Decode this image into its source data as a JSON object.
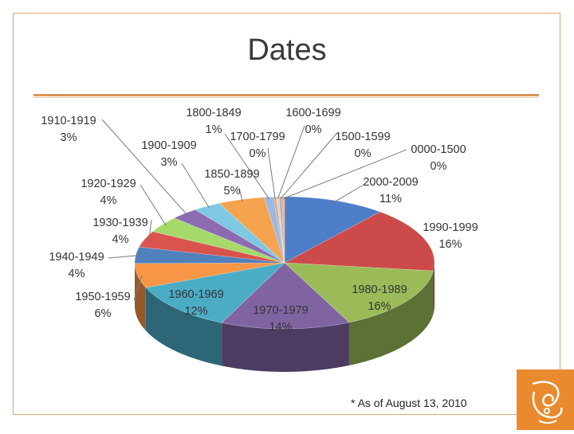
{
  "slide": {
    "title": "Dates",
    "footnote": "* As of August 13, 2010"
  },
  "colors": {
    "frame": "#d9a77a",
    "rule": "#d9955a",
    "logo": "#e88a2d"
  },
  "chart_data": {
    "type": "pie",
    "title": "Dates",
    "categories": [
      "2000-2009",
      "1990-1999",
      "1980-1989",
      "1970-1979",
      "1960-1969",
      "1950-1959",
      "1940-1949",
      "1930-1939",
      "1920-1929",
      "1910-1919",
      "1900-1909",
      "1850-1899",
      "1800-1849",
      "1700-1799",
      "1600-1699",
      "1500-1599",
      "0000-1500"
    ],
    "values": [
      11,
      16,
      16,
      14,
      12,
      6,
      4,
      4,
      4,
      3,
      3,
      5,
      1,
      0,
      0,
      0,
      0
    ],
    "labels": [
      "11%",
      "16%",
      "16%",
      "14%",
      "12%",
      "6%",
      "4%",
      "4%",
      "4%",
      "3%",
      "3%",
      "5%",
      "1%",
      "0%",
      "0%",
      "0%",
      "0%"
    ],
    "colors": [
      "#4f7ec8",
      "#cc4b4a",
      "#9bbb59",
      "#8064a2",
      "#4bacc6",
      "#f79646",
      "#4f81bd",
      "#d9534f",
      "#a6d96a",
      "#8c6bb1",
      "#7ec8e3",
      "#f5a34f",
      "#9cb9e0",
      "#e8a3a3",
      "#cde0a8",
      "#b4a7d6",
      "#f4b183"
    ],
    "start_angle_deg": -90,
    "legend": "none"
  }
}
